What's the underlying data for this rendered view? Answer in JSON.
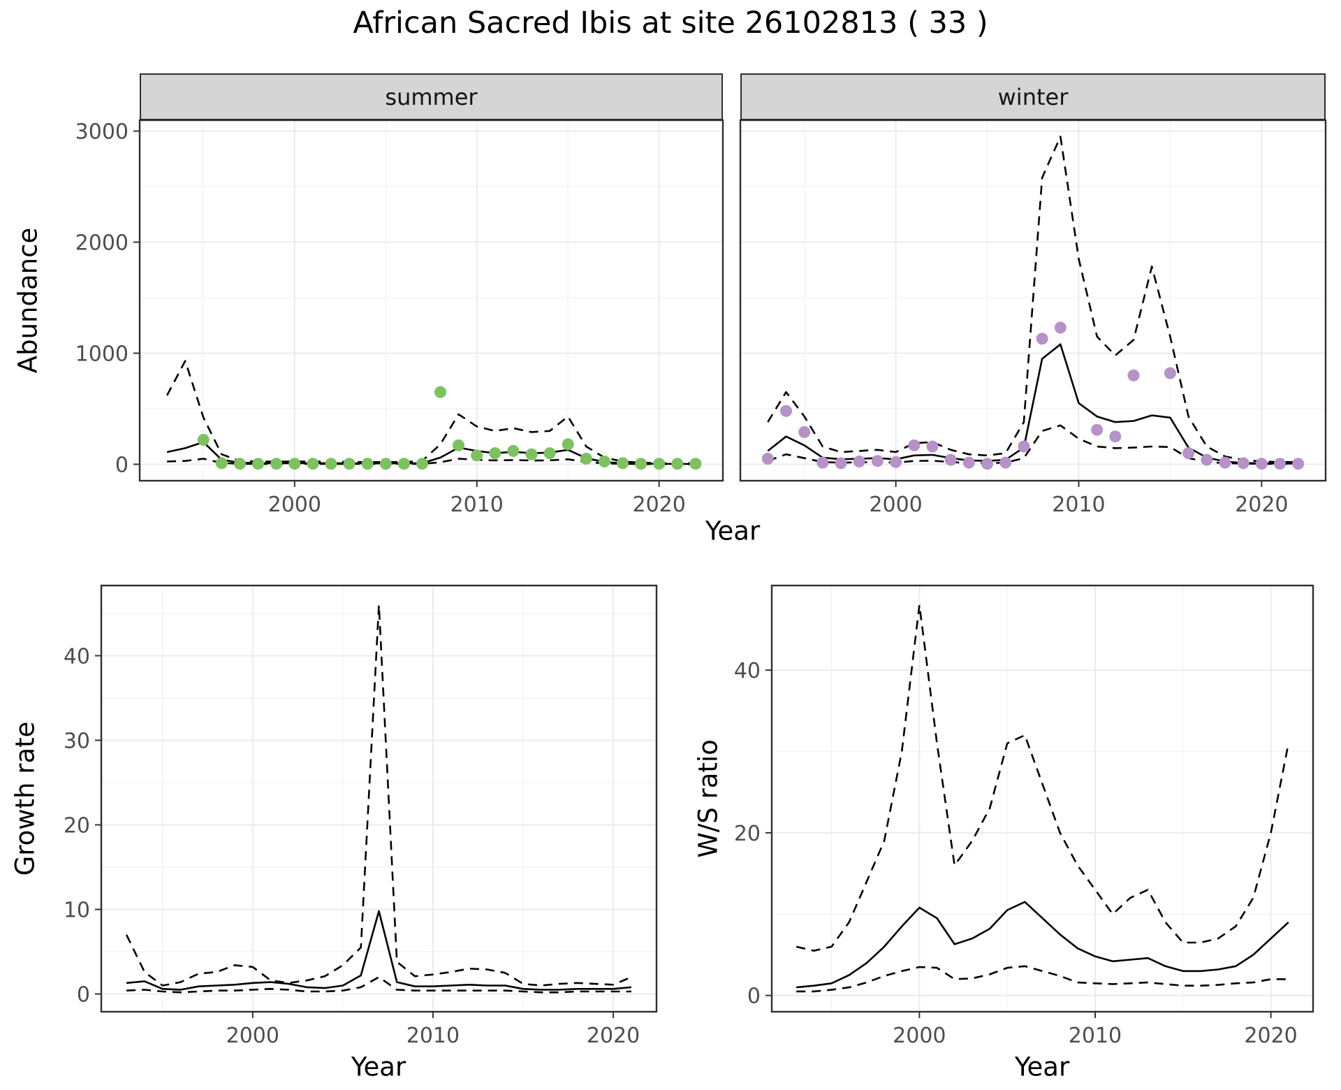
{
  "figure": {
    "title": "African Sacred Ibis at site 26102813 ( 33 )"
  },
  "chart_data": [
    {
      "type": "line",
      "panel": "abundance-summer",
      "facet_label": "summer",
      "xlabel": "Year",
      "ylabel": "Abundance",
      "xlim": [
        1991.5,
        2023.5
      ],
      "ylim": [
        -148,
        3098
      ],
      "xticks": [
        2000,
        2010,
        2020
      ],
      "yticks": [
        0,
        1000,
        2000,
        3000
      ],
      "grid": true,
      "legend": "none",
      "x": [
        1993,
        1994,
        1995,
        1996,
        1997,
        1998,
        1999,
        2000,
        2001,
        2002,
        2003,
        2004,
        2005,
        2006,
        2007,
        2008,
        2009,
        2010,
        2011,
        2012,
        2013,
        2014,
        2015,
        2016,
        2017,
        2018,
        2019,
        2020,
        2021,
        2022
      ],
      "series": [
        {
          "name": "observed counts",
          "kind": "points",
          "color": "#7cc25f",
          "values": [
            null,
            null,
            220,
            10,
            5,
            5,
            5,
            5,
            5,
            5,
            5,
            5,
            5,
            5,
            5,
            650,
            170,
            80,
            100,
            120,
            90,
            100,
            180,
            50,
            25,
            10,
            5,
            5,
            5,
            5
          ]
        },
        {
          "name": "model fit",
          "kind": "line",
          "style": "solid",
          "color": "#000000",
          "values": [
            110,
            145,
            200,
            40,
            15,
            10,
            10,
            10,
            10,
            10,
            8,
            8,
            8,
            8,
            10,
            60,
            150,
            120,
            100,
            112,
            100,
            105,
            130,
            55,
            20,
            10,
            6,
            4,
            3,
            3
          ]
        },
        {
          "name": "upper CI",
          "kind": "line",
          "style": "dashed",
          "color": "#000000",
          "values": [
            620,
            930,
            420,
            90,
            30,
            25,
            25,
            25,
            25,
            25,
            22,
            20,
            20,
            20,
            30,
            180,
            450,
            340,
            300,
            325,
            290,
            300,
            430,
            160,
            60,
            25,
            15,
            10,
            8,
            8
          ]
        },
        {
          "name": "lower CI",
          "kind": "line",
          "style": "dashed",
          "color": "#000000",
          "values": [
            25,
            30,
            50,
            12,
            4,
            3,
            3,
            3,
            3,
            3,
            3,
            3,
            3,
            3,
            4,
            18,
            50,
            40,
            35,
            38,
            34,
            35,
            45,
            20,
            8,
            4,
            2,
            2,
            1,
            1
          ]
        }
      ]
    },
    {
      "type": "line",
      "panel": "abundance-winter",
      "facet_label": "winter",
      "xlim": [
        1991.5,
        2023.5
      ],
      "ylim": [
        -148,
        3098
      ],
      "xticks": [
        2000,
        2010,
        2020
      ],
      "yticks": [
        0,
        1000,
        2000,
        3000
      ],
      "grid": true,
      "legend": "none",
      "x": [
        1993,
        1994,
        1995,
        1996,
        1997,
        1998,
        1999,
        2000,
        2001,
        2002,
        2003,
        2004,
        2005,
        2006,
        2007,
        2008,
        2009,
        2010,
        2011,
        2012,
        2013,
        2014,
        2015,
        2016,
        2017,
        2018,
        2019,
        2020,
        2021,
        2022
      ],
      "series": [
        {
          "name": "observed counts",
          "kind": "points",
          "color": "#b592c8",
          "values": [
            50,
            480,
            290,
            15,
            10,
            25,
            30,
            20,
            170,
            160,
            40,
            15,
            5,
            15,
            160,
            1130,
            1230,
            null,
            310,
            250,
            800,
            null,
            820,
            100,
            40,
            15,
            10,
            5,
            5,
            5
          ]
        },
        {
          "name": "model fit",
          "kind": "line",
          "style": "solid",
          "color": "#000000",
          "values": [
            120,
            250,
            170,
            60,
            45,
            50,
            55,
            45,
            80,
            85,
            55,
            35,
            30,
            40,
            150,
            950,
            1080,
            550,
            430,
            380,
            390,
            440,
            420,
            150,
            60,
            25,
            12,
            8,
            6,
            6
          ]
        },
        {
          "name": "upper CI",
          "kind": "line",
          "style": "dashed",
          "color": "#000000",
          "values": [
            380,
            650,
            430,
            160,
            110,
            120,
            130,
            110,
            190,
            200,
            130,
            90,
            80,
            100,
            380,
            2580,
            2950,
            1850,
            1150,
            980,
            1120,
            1780,
            1150,
            430,
            160,
            70,
            40,
            25,
            20,
            20
          ]
        },
        {
          "name": "lower CI",
          "kind": "line",
          "style": "dashed",
          "color": "#000000",
          "values": [
            30,
            90,
            55,
            20,
            15,
            18,
            20,
            15,
            30,
            32,
            20,
            12,
            10,
            15,
            55,
            300,
            350,
            230,
            160,
            145,
            150,
            160,
            155,
            55,
            22,
            10,
            6,
            4,
            3,
            3
          ]
        }
      ]
    },
    {
      "type": "line",
      "panel": "growth-rate",
      "xlabel": "Year",
      "ylabel": "Growth rate",
      "xlim": [
        1991.6,
        2022.4
      ],
      "ylim": [
        -2.1,
        48.3
      ],
      "xticks": [
        2000,
        2010,
        2020
      ],
      "yticks": [
        0,
        10,
        20,
        30,
        40
      ],
      "grid": true,
      "legend": "none",
      "x": [
        1993,
        1994,
        1995,
        1996,
        1997,
        1998,
        1999,
        2000,
        2001,
        2002,
        2003,
        2004,
        2005,
        2006,
        2007,
        2008,
        2009,
        2010,
        2011,
        2012,
        2013,
        2014,
        2015,
        2016,
        2017,
        2018,
        2019,
        2020,
        2021
      ],
      "series": [
        {
          "name": "model fit",
          "kind": "line",
          "style": "solid",
          "color": "#000000",
          "values": [
            1.3,
            1.5,
            0.6,
            0.5,
            0.9,
            1.0,
            1.1,
            1.3,
            1.4,
            1.2,
            0.8,
            0.7,
            1.0,
            2.2,
            9.8,
            1.4,
            0.9,
            0.9,
            1.0,
            1.1,
            1.0,
            1.0,
            0.6,
            0.5,
            0.5,
            0.6,
            0.6,
            0.6,
            0.8
          ]
        },
        {
          "name": "upper CI",
          "kind": "line",
          "style": "dashed",
          "color": "#000000",
          "values": [
            7.0,
            2.6,
            1.0,
            1.4,
            2.4,
            2.6,
            3.4,
            3.2,
            1.6,
            1.3,
            1.6,
            2.1,
            3.4,
            5.5,
            46.0,
            3.8,
            2.1,
            2.3,
            2.6,
            3.0,
            2.9,
            2.5,
            1.2,
            1.0,
            1.2,
            1.3,
            1.2,
            1.1,
            2.0
          ]
        },
        {
          "name": "lower CI",
          "kind": "line",
          "style": "dashed",
          "color": "#000000",
          "values": [
            0.4,
            0.5,
            0.3,
            0.2,
            0.3,
            0.4,
            0.4,
            0.5,
            0.6,
            0.5,
            0.3,
            0.3,
            0.4,
            0.8,
            2.0,
            0.5,
            0.4,
            0.4,
            0.4,
            0.4,
            0.4,
            0.4,
            0.3,
            0.2,
            0.2,
            0.3,
            0.3,
            0.3,
            0.3
          ]
        }
      ]
    },
    {
      "type": "line",
      "panel": "ws-ratio",
      "xlabel": "Year",
      "ylabel": "W/S ratio",
      "xlim": [
        1991.6,
        2022.4
      ],
      "ylim": [
        -2.0,
        50.4
      ],
      "xticks": [
        2000,
        2010,
        2020
      ],
      "yticks": [
        0,
        20,
        40
      ],
      "grid": true,
      "legend": "none",
      "x": [
        1993,
        1994,
        1995,
        1996,
        1997,
        1998,
        1999,
        2000,
        2001,
        2002,
        2003,
        2004,
        2005,
        2006,
        2007,
        2008,
        2009,
        2010,
        2011,
        2012,
        2013,
        2014,
        2015,
        2016,
        2017,
        2018,
        2019,
        2020,
        2021
      ],
      "series": [
        {
          "name": "model fit",
          "kind": "line",
          "style": "solid",
          "color": "#000000",
          "values": [
            1.0,
            1.2,
            1.5,
            2.5,
            4.0,
            6.0,
            8.5,
            10.8,
            9.5,
            6.3,
            7.0,
            8.2,
            10.5,
            11.5,
            9.5,
            7.5,
            5.8,
            4.8,
            4.2,
            4.4,
            4.6,
            3.6,
            3.0,
            3.0,
            3.2,
            3.6,
            5.0,
            7.0,
            9.0
          ]
        },
        {
          "name": "upper CI",
          "kind": "line",
          "style": "dashed",
          "color": "#000000",
          "values": [
            6.0,
            5.5,
            6.0,
            9.0,
            14.0,
            19.0,
            30.0,
            48.0,
            31.0,
            16.0,
            19.0,
            23.0,
            31.0,
            32.0,
            26.0,
            20.0,
            16.0,
            13.0,
            10.0,
            12.0,
            13.0,
            9.0,
            6.5,
            6.5,
            7.0,
            8.5,
            12.0,
            20.0,
            31.0
          ]
        },
        {
          "name": "lower CI",
          "kind": "line",
          "style": "dashed",
          "color": "#000000",
          "values": [
            0.5,
            0.5,
            0.7,
            1.0,
            1.6,
            2.4,
            3.0,
            3.5,
            3.4,
            2.0,
            2.1,
            2.6,
            3.4,
            3.6,
            3.0,
            2.4,
            1.6,
            1.5,
            1.4,
            1.5,
            1.6,
            1.4,
            1.2,
            1.2,
            1.3,
            1.5,
            1.6,
            2.0,
            2.0
          ]
        }
      ]
    }
  ]
}
